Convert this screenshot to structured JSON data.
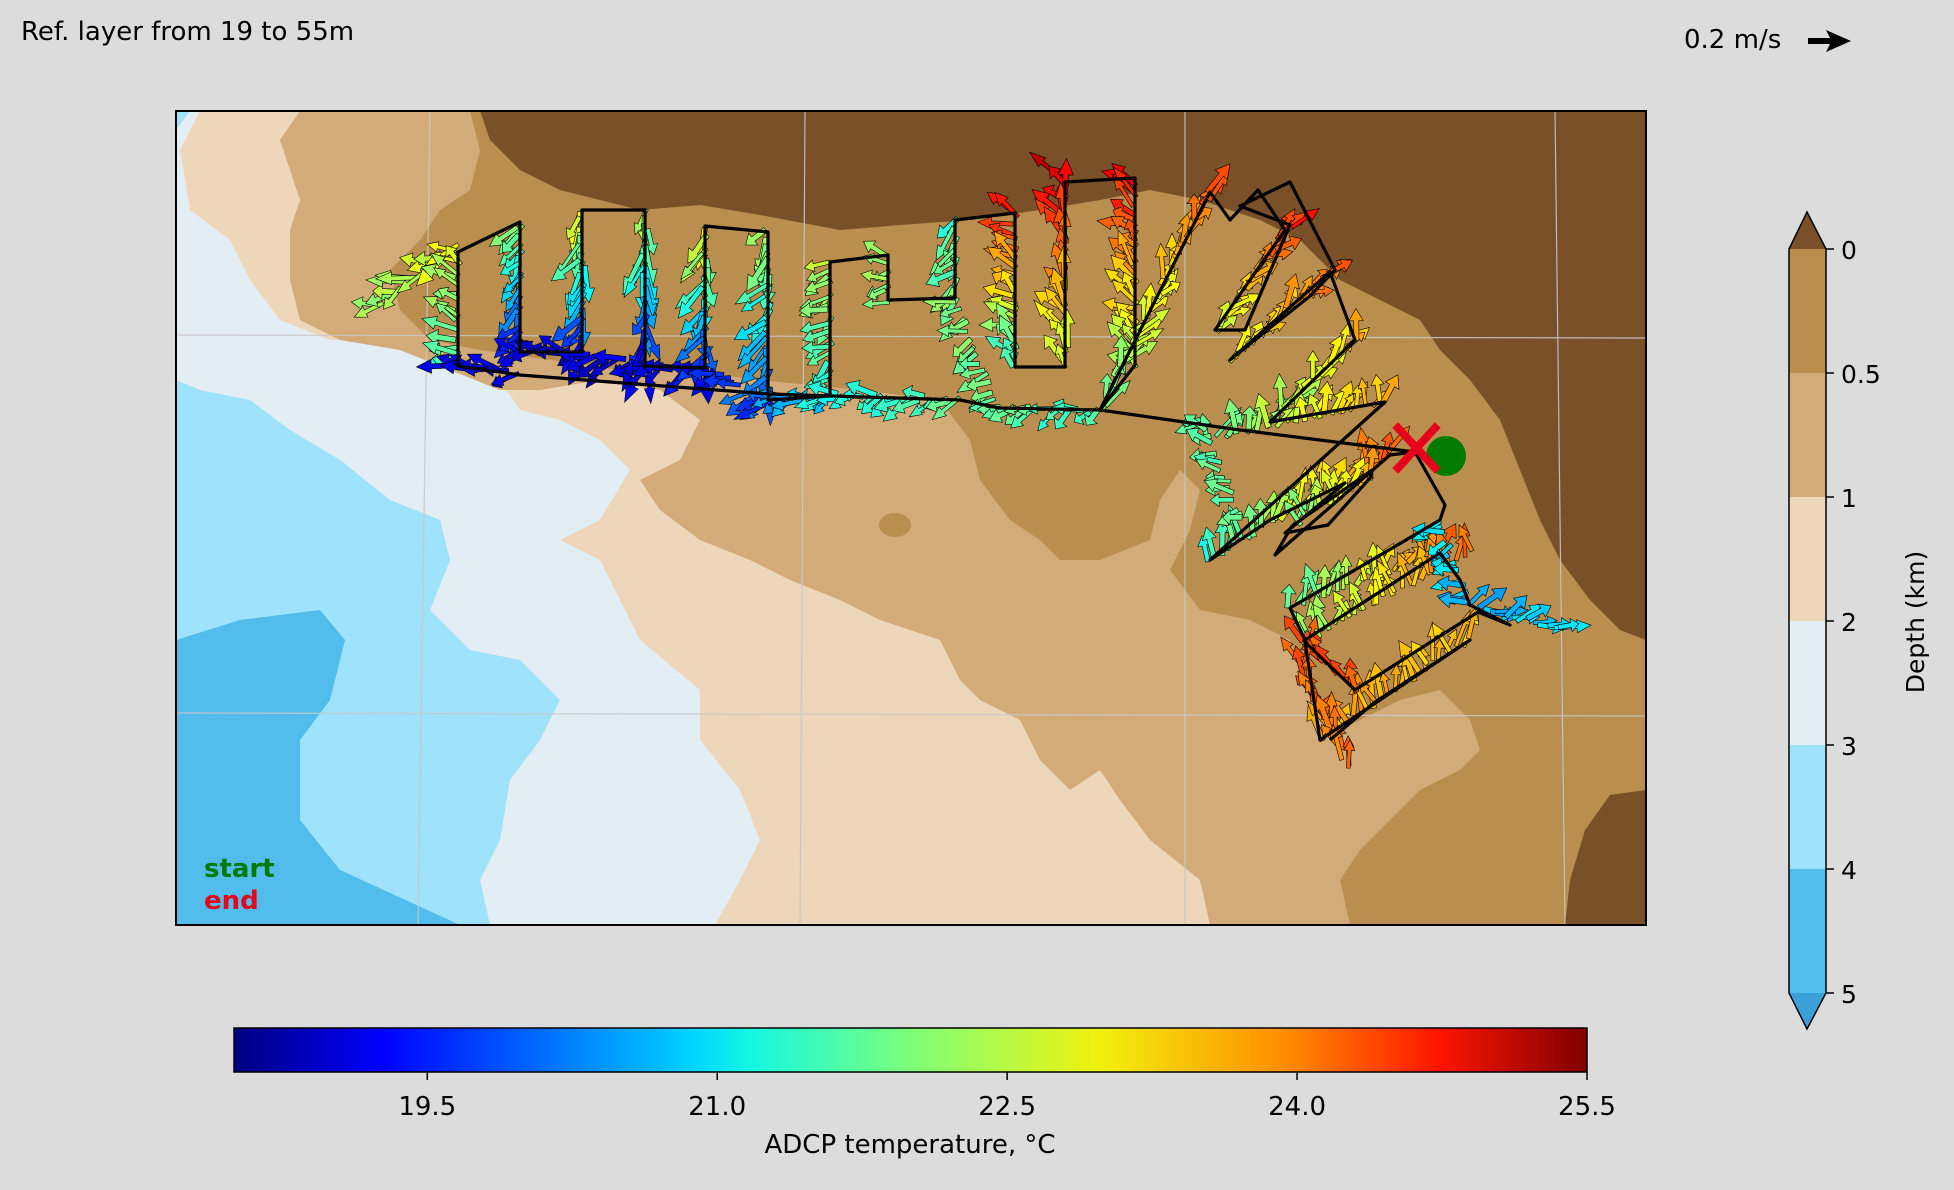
{
  "header": {
    "ref_layer": "Ref. layer from 19 to 55m",
    "scale_label": "0.2 m/s"
  },
  "map": {
    "legend_start": "start",
    "legend_end": "end",
    "start_color": "#007a00",
    "end_color": "#e8001a",
    "track_color": "#000000",
    "gridline_color": "#c8c8c8"
  },
  "depth_colorbar": {
    "label": "Depth (km)",
    "ticks": [
      "0",
      "0.5",
      "1",
      "2",
      "3",
      "4",
      "5"
    ],
    "bands": [
      {
        "from": "0",
        "to": "0.5",
        "color": "#b98e4f"
      },
      {
        "from": "0.5",
        "to": "1",
        "color": "#d2ab79"
      },
      {
        "from": "1",
        "to": "2",
        "color": "#eed6ba"
      },
      {
        "from": "2",
        "to": "3",
        "color": "#e3edf4"
      },
      {
        "from": "3",
        "to": "4",
        "color": "#9fe2fb"
      },
      {
        "from": "4",
        "to": "5",
        "color": "#52bcec"
      }
    ],
    "extend_top_color": "#7a5028",
    "extend_bottom_color": "#3aa0d8"
  },
  "temp_colorbar": {
    "label": "ADCP temperature, °C",
    "ticks": [
      "19.5",
      "21.0",
      "22.5",
      "24.0",
      "25.5"
    ],
    "tick_values": [
      19.5,
      21.0,
      22.5,
      24.0,
      25.5
    ],
    "range": [
      18.5,
      25.5
    ],
    "colormap": "jet"
  }
}
